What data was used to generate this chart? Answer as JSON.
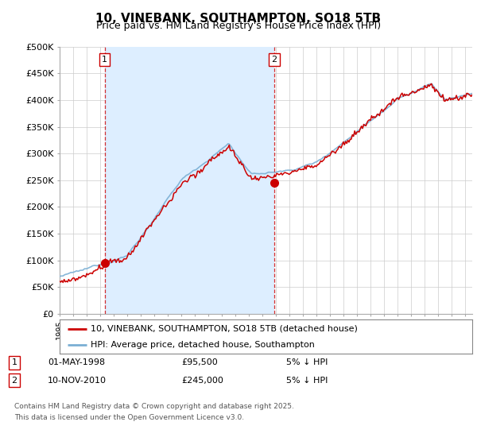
{
  "title": "10, VINEBANK, SOUTHAMPTON, SO18 5TB",
  "subtitle": "Price paid vs. HM Land Registry's House Price Index (HPI)",
  "ylabel_ticks": [
    "£0",
    "£50K",
    "£100K",
    "£150K",
    "£200K",
    "£250K",
    "£300K",
    "£350K",
    "£400K",
    "£450K",
    "£500K"
  ],
  "ytick_values": [
    0,
    50000,
    100000,
    150000,
    200000,
    250000,
    300000,
    350000,
    400000,
    450000,
    500000
  ],
  "ylim": [
    0,
    500000
  ],
  "xlim_start": 1995.0,
  "xlim_end": 2025.5,
  "transaction1": {
    "date_x": 1998.33,
    "price": 95500,
    "label": "1"
  },
  "transaction2": {
    "date_x": 2010.86,
    "price": 245000,
    "label": "2"
  },
  "legend_line1": "10, VINEBANK, SOUTHAMPTON, SO18 5TB (detached house)",
  "legend_line2": "HPI: Average price, detached house, Southampton",
  "hpi_color": "#7aafd4",
  "price_color": "#cc0000",
  "vline_color": "#cc0000",
  "fill_color": "#ddeeff",
  "background_color": "#ffffff",
  "grid_color": "#cccccc"
}
